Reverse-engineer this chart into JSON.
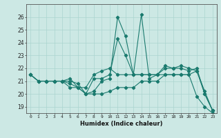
{
  "title": "",
  "xlabel": "Humidex (Indice chaleur)",
  "ylabel": "",
  "x": [
    0,
    1,
    2,
    3,
    4,
    5,
    6,
    7,
    8,
    9,
    10,
    11,
    12,
    13,
    14,
    15,
    16,
    17,
    18,
    19,
    20,
    21,
    22,
    23
  ],
  "line1": [
    21.5,
    21.0,
    21.0,
    21.0,
    21.0,
    21.0,
    20.8,
    20.0,
    20.2,
    21.0,
    21.2,
    26.0,
    24.5,
    21.5,
    26.2,
    21.2,
    21.5,
    22.2,
    22.0,
    22.0,
    21.8,
    22.0,
    20.0,
    18.7
  ],
  "line2": [
    21.5,
    21.0,
    21.0,
    21.0,
    21.0,
    21.2,
    20.5,
    20.0,
    21.2,
    21.2,
    21.5,
    24.3,
    23.0,
    21.5,
    21.5,
    21.5,
    21.5,
    21.5,
    21.5,
    21.5,
    21.5,
    21.8,
    20.0,
    18.7
  ],
  "line3": [
    21.5,
    21.0,
    21.0,
    21.0,
    21.0,
    20.8,
    20.5,
    20.5,
    21.5,
    21.8,
    22.0,
    21.5,
    21.5,
    21.5,
    21.5,
    21.5,
    21.5,
    22.0,
    22.0,
    22.2,
    22.0,
    21.8,
    20.2,
    18.7
  ],
  "line4": [
    21.5,
    21.0,
    21.0,
    21.0,
    21.0,
    20.5,
    20.5,
    20.0,
    20.0,
    20.0,
    20.2,
    20.5,
    20.5,
    20.5,
    21.0,
    21.0,
    21.0,
    21.5,
    21.5,
    21.5,
    21.5,
    19.8,
    19.0,
    18.5
  ],
  "line_color": "#1a7a6e",
  "bg_color": "#cce8e4",
  "grid_color": "#aad4cf",
  "ylim": [
    18.5,
    27.0
  ],
  "yticks": [
    19,
    20,
    21,
    22,
    23,
    24,
    25,
    26
  ],
  "xlim": [
    -0.5,
    23.5
  ]
}
